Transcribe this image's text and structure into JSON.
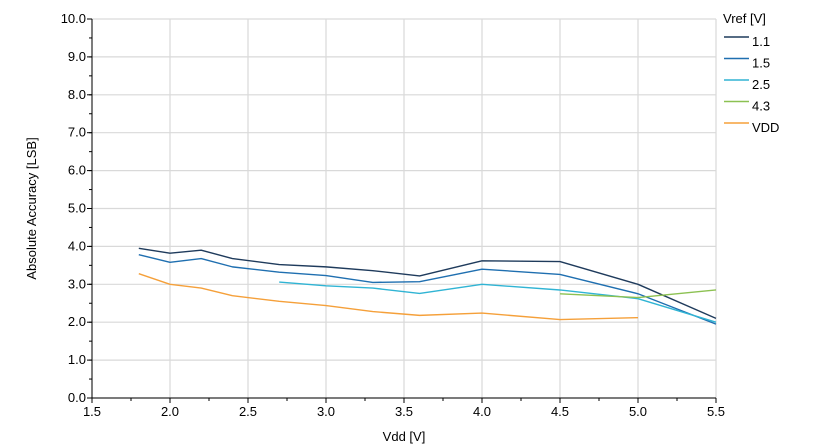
{
  "chart_data": {
    "type": "line",
    "title": "",
    "xlabel": "Vdd [V]",
    "ylabel": "Absolute Accuracy [LSB]",
    "xlim": [
      1.5,
      5.5
    ],
    "ylim": [
      0.0,
      10.0
    ],
    "x_ticks": [
      "1.5",
      "2.0",
      "2.5",
      "3.0",
      "3.5",
      "4.0",
      "4.5",
      "5.0",
      "5.5"
    ],
    "y_ticks": [
      "0.0",
      "1.0",
      "2.0",
      "3.0",
      "4.0",
      "5.0",
      "6.0",
      "7.0",
      "8.0",
      "9.0",
      "10.0"
    ],
    "grid": true,
    "legend_title": "Vref [V]",
    "legend_position": "right",
    "series": [
      {
        "name": "1.1",
        "color": "#1f3b5c",
        "points": [
          [
            1.8,
            3.95
          ],
          [
            2.0,
            3.82
          ],
          [
            2.2,
            3.9
          ],
          [
            2.4,
            3.68
          ],
          [
            2.7,
            3.52
          ],
          [
            3.0,
            3.46
          ],
          [
            3.3,
            3.36
          ],
          [
            3.6,
            3.22
          ],
          [
            4.0,
            3.62
          ],
          [
            4.5,
            3.6
          ],
          [
            5.0,
            3.0
          ],
          [
            5.5,
            2.1
          ]
        ]
      },
      {
        "name": "1.5",
        "color": "#1f6fb0",
        "points": [
          [
            1.8,
            3.78
          ],
          [
            2.0,
            3.58
          ],
          [
            2.2,
            3.68
          ],
          [
            2.4,
            3.46
          ],
          [
            2.7,
            3.32
          ],
          [
            3.0,
            3.23
          ],
          [
            3.3,
            3.05
          ],
          [
            3.6,
            3.07
          ],
          [
            4.0,
            3.4
          ],
          [
            4.5,
            3.26
          ],
          [
            5.0,
            2.75
          ],
          [
            5.5,
            1.95
          ]
        ]
      },
      {
        "name": "2.5",
        "color": "#30b4d4",
        "points": [
          [
            2.7,
            3.06
          ],
          [
            3.0,
            2.96
          ],
          [
            3.3,
            2.9
          ],
          [
            3.6,
            2.76
          ],
          [
            4.0,
            3.0
          ],
          [
            4.5,
            2.85
          ],
          [
            5.0,
            2.62
          ],
          [
            5.5,
            2.0
          ]
        ]
      },
      {
        "name": "4.3",
        "color": "#8cc152",
        "points": [
          [
            4.5,
            2.75
          ],
          [
            5.0,
            2.65
          ],
          [
            5.5,
            2.85
          ]
        ]
      },
      {
        "name": "VDD",
        "color": "#f5a03a",
        "points": [
          [
            1.8,
            3.28
          ],
          [
            2.0,
            3.0
          ],
          [
            2.2,
            2.9
          ],
          [
            2.4,
            2.7
          ],
          [
            2.7,
            2.55
          ],
          [
            3.0,
            2.44
          ],
          [
            3.3,
            2.28
          ],
          [
            3.6,
            2.18
          ],
          [
            4.0,
            2.24
          ],
          [
            4.5,
            2.07
          ],
          [
            5.0,
            2.12
          ]
        ]
      }
    ]
  }
}
